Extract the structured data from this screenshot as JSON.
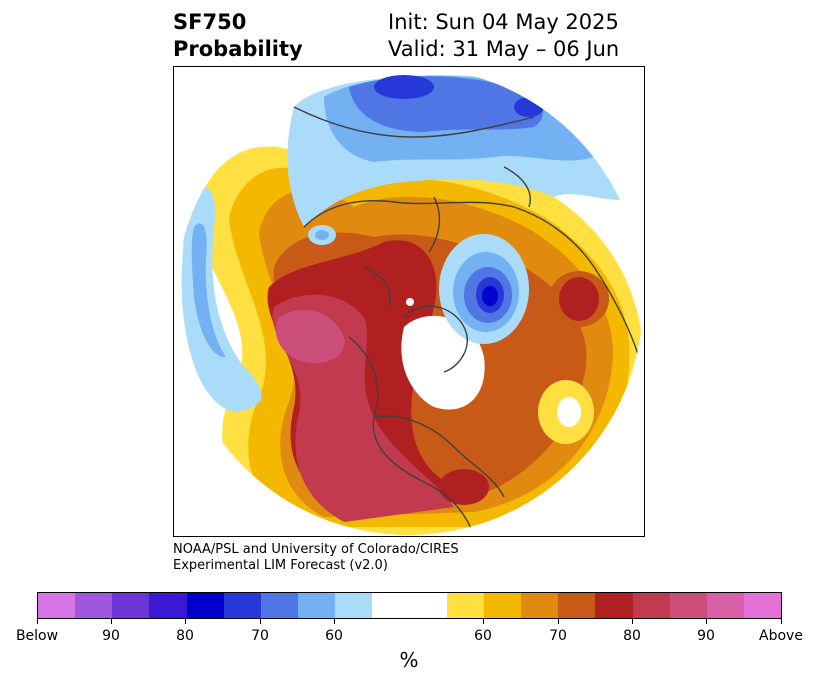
{
  "header": {
    "title_line1": "SF750",
    "title_line2": "Probability",
    "init_label": "Init: Sun 04 May 2025",
    "valid_label": "Valid: 31 May – 06 Jun"
  },
  "credit": {
    "line1": "NOAA/PSL and University of Colorado/CIRES",
    "line2": "Experimental LIM Forecast (v2.0)"
  },
  "colorbar": {
    "colors": [
      "#d774e8",
      "#9f57e0",
      "#6d35d8",
      "#3a18d4",
      "#0000cc",
      "#2638d8",
      "#4f76e4",
      "#73b1f2",
      "#aadcfa",
      "#ffffff",
      "#ffffff",
      "#ffe040",
      "#f4b800",
      "#e08a10",
      "#c85a18",
      "#b02020",
      "#c23a4e",
      "#cc4e7a",
      "#d860a6",
      "#e570d6"
    ],
    "tick_labels": [
      "Below",
      "90",
      "80",
      "70",
      "60",
      "60",
      "70",
      "80",
      "90",
      "Above"
    ],
    "unit": "%"
  },
  "map": {
    "projection": "north-polar-stereographic",
    "colors": {
      "white": "#ffffff",
      "light_yellow": "#ffe040",
      "yellow": "#f4b800",
      "orange": "#e08a10",
      "dark_orange": "#c85a18",
      "red": "#b02020",
      "crimson": "#c23a4e",
      "pink": "#cc4e7a",
      "light_blue": "#aadcfa",
      "sky_blue": "#73b1f2",
      "blue": "#4f76e4",
      "royal_blue": "#2638d8",
      "deep_blue": "#0000cc",
      "coastline": "#404040"
    }
  }
}
